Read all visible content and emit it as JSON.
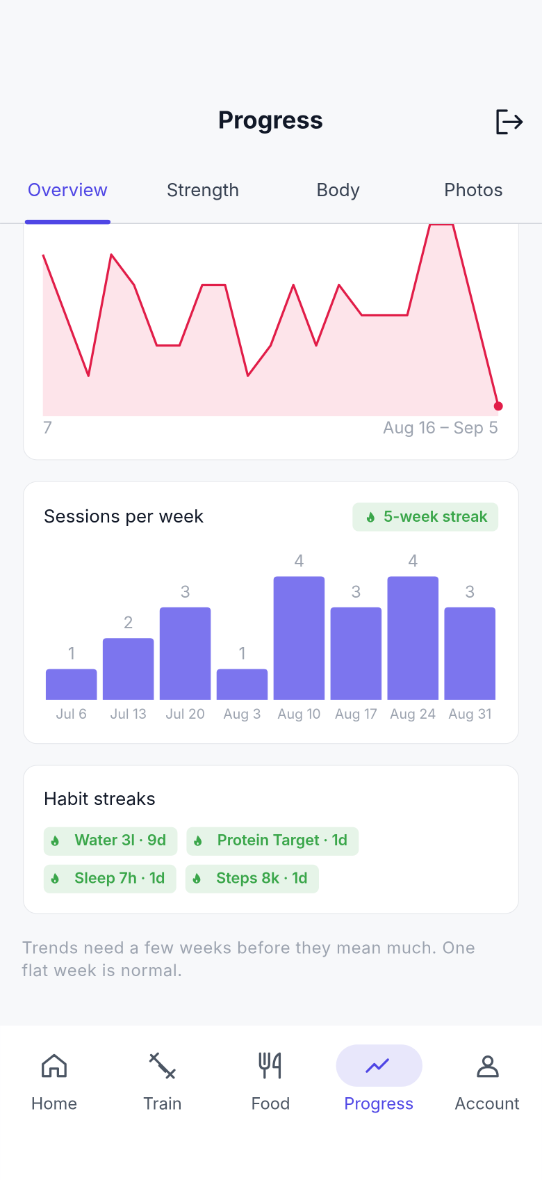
{
  "header": {
    "title": "Progress"
  },
  "tabs": [
    "Overview",
    "Strength",
    "Body",
    "Photos"
  ],
  "chart_data": [
    {
      "type": "line",
      "color": "#e11d48",
      "area_color": "#fde4ea",
      "x": [
        0,
        2,
        3,
        4,
        5,
        6,
        7,
        8,
        9,
        10,
        11,
        12,
        13,
        14,
        15,
        16,
        17,
        18,
        20
      ],
      "values": [
        5,
        1,
        5,
        4,
        2,
        2,
        4,
        4,
        1,
        2,
        4,
        2,
        4,
        3,
        3,
        3,
        6,
        6,
        0
      ],
      "xlim": [
        0,
        20
      ],
      "ylim": [
        -0.33,
        6
      ],
      "x_start_label": "7",
      "x_end_label": "Aug 16 – Sep 5"
    },
    {
      "type": "bar",
      "title": "Sessions per week",
      "badge": "5-week streak",
      "color": "#7c75ee",
      "categories": [
        "Jul 6",
        "Jul 13",
        "Jul 20",
        "Aug 3",
        "Aug 10",
        "Aug 17",
        "Aug 24",
        "Aug 31"
      ],
      "values": [
        1,
        2,
        3,
        1,
        4,
        3,
        4,
        3
      ],
      "ylim": [
        0,
        4
      ]
    }
  ],
  "habits": {
    "title": "Habit streaks",
    "items": [
      "Water 3l · 9d",
      "Protein Target · 1d",
      "Sleep 7h · 1d",
      "Steps 8k · 1d"
    ]
  },
  "note": [
    "Trends need a few weeks before they mean much. One",
    "flat week is normal."
  ],
  "nav": [
    "Home",
    "Train",
    "Food",
    "Progress",
    "Account"
  ]
}
